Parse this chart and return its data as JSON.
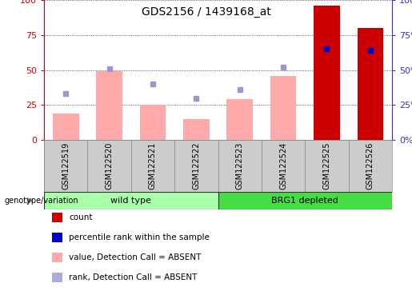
{
  "title": "GDS2156 / 1439168_at",
  "samples": [
    "GSM122519",
    "GSM122520",
    "GSM122521",
    "GSM122522",
    "GSM122523",
    "GSM122524",
    "GSM122525",
    "GSM122526"
  ],
  "bar_values": [
    19,
    49,
    25,
    15,
    29,
    46,
    96,
    80
  ],
  "bar_colors": [
    "#ffaaaa",
    "#ffaaaa",
    "#ffaaaa",
    "#ffaaaa",
    "#ffaaaa",
    "#ffaaaa",
    "#cc0000",
    "#cc0000"
  ],
  "rank_dots": [
    33,
    51,
    40,
    30,
    36,
    52,
    65,
    64
  ],
  "rank_dot_colors_present": [
    false,
    false,
    false,
    false,
    false,
    false,
    true,
    true
  ],
  "ylim": [
    0,
    100
  ],
  "yticks": [
    0,
    25,
    50,
    75,
    100
  ],
  "groups": [
    {
      "label": "wild type",
      "start": 0,
      "end": 3,
      "color": "#aaffaa"
    },
    {
      "label": "BRG1 depleted",
      "start": 4,
      "end": 7,
      "color": "#44dd44"
    }
  ],
  "left_axis_color": "#cc0000",
  "right_axis_color": "#3333cc",
  "legend_colors": [
    "#cc0000",
    "#0000cc",
    "#ffaaaa",
    "#aaaadd"
  ],
  "legend_labels": [
    "count",
    "percentile rank within the sample",
    "value, Detection Call = ABSENT",
    "rank, Detection Call = ABSENT"
  ],
  "bg_color": "#ffffff",
  "plot_bg": "#ffffff",
  "tick_label_area_color": "#cccccc",
  "group_border_color": "#333333",
  "arrow_color": "#888888"
}
